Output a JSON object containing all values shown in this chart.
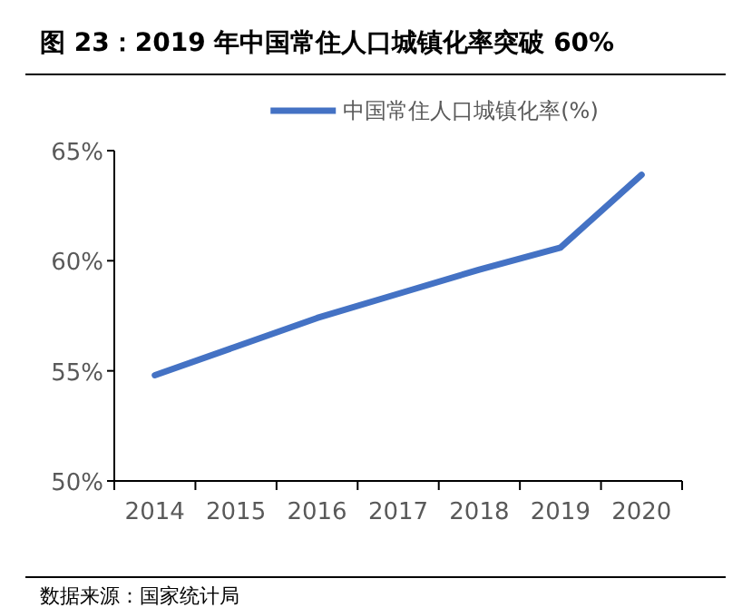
{
  "chart_data": {
    "type": "line",
    "title": "图 23：2019 年中国常住人口城镇化率突破 60%",
    "categories": [
      "2014",
      "2015",
      "2016",
      "2017",
      "2018",
      "2019",
      "2020"
    ],
    "series": [
      {
        "name": "中国常住人口城镇化率(%)",
        "color": "#4472c4",
        "values": [
          54.8,
          56.1,
          57.4,
          58.5,
          59.6,
          60.6,
          63.9
        ]
      }
    ],
    "ylim": [
      50,
      65
    ],
    "yticks": [
      {
        "value": 50,
        "label": "50%"
      },
      {
        "value": 55,
        "label": "55%"
      },
      {
        "value": 60,
        "label": "60%"
      },
      {
        "value": 65,
        "label": "65%"
      }
    ],
    "legend": "top",
    "grid": false,
    "marker": "none",
    "line_style": "solid",
    "annotations": [
      "数据来源：国家统计局"
    ]
  }
}
